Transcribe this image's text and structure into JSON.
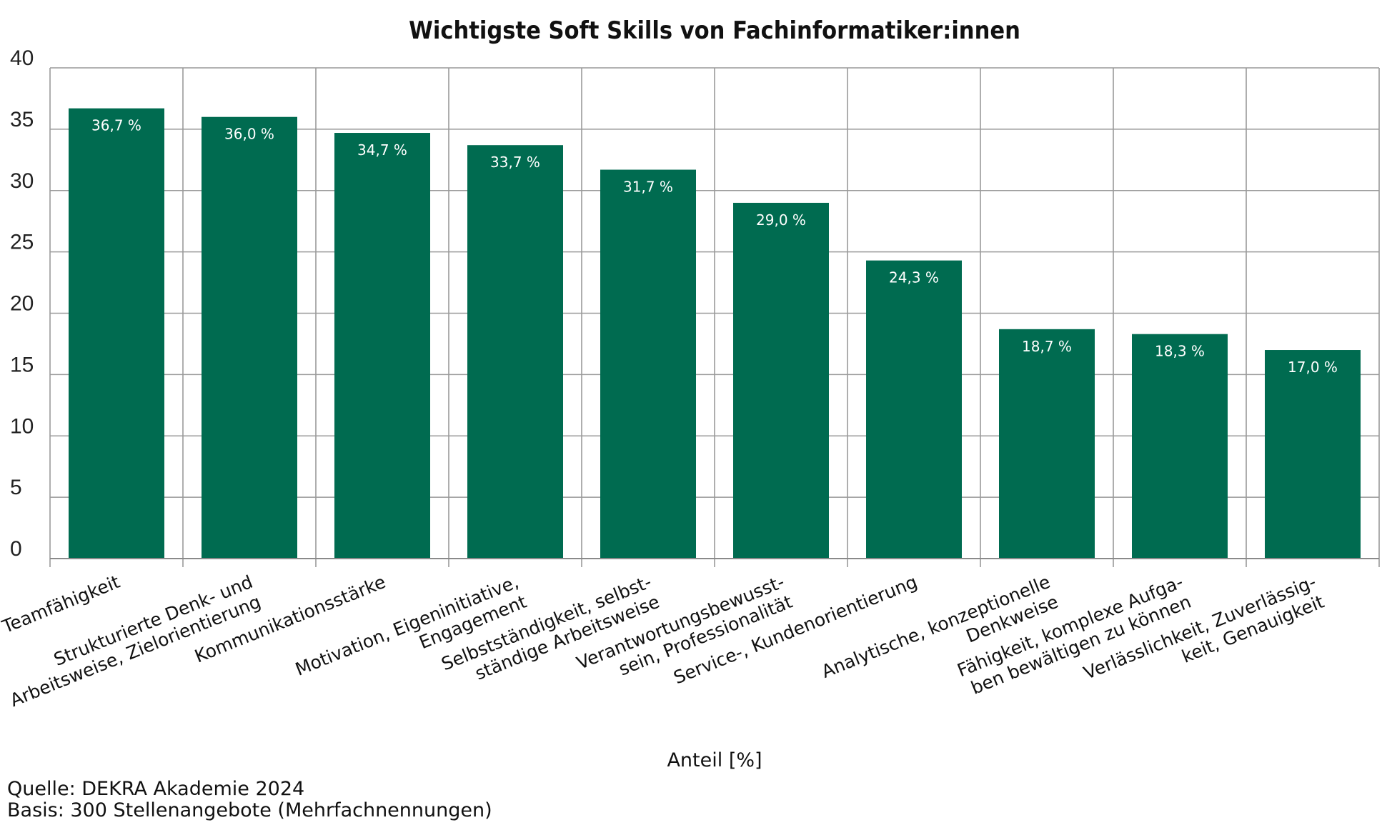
{
  "chart_data": {
    "type": "bar",
    "title": "Wichtigste Soft Skills von Fachinformatiker:innen",
    "xlabel": "Anteil [%]",
    "ylabel": "",
    "ylim": [
      0,
      40
    ],
    "yticks": [
      0,
      5,
      10,
      15,
      20,
      25,
      30,
      35,
      40
    ],
    "grid": true,
    "bar_color": "#006b50",
    "categories": [
      [
        "Teamfähigkeit"
      ],
      [
        "Strukturierte Denk- und",
        "Arbeitsweise, Zielorientierung"
      ],
      [
        "Kommunikationsstärke"
      ],
      [
        "Motivation, Eigeninitiative,",
        "Engagement"
      ],
      [
        "Selbstständigkeit, selbst-",
        "ständige Arbeitsweise"
      ],
      [
        "Verantwortungsbewusst-",
        "sein, Professionalität"
      ],
      [
        "Service-, Kundenorientierung"
      ],
      [
        "Analytische, konzeptionelle",
        "Denkweise"
      ],
      [
        "Fähigkeit, komplexe Aufga-",
        "ben bewältigen zu können"
      ],
      [
        "Verlässlichkeit, Zuverlässig-",
        "keit, Genauigkeit"
      ]
    ],
    "values": [
      36.7,
      36.0,
      34.7,
      33.7,
      31.7,
      29.0,
      24.3,
      18.7,
      18.3,
      17.0
    ],
    "value_labels": [
      "36,7 %",
      "36,0 %",
      "34,7 %",
      "33,7 %",
      "31,7 %",
      "29,0 %",
      "24,3 %",
      "18,7 %",
      "18,3 %",
      "17,0 %"
    ]
  },
  "footer": {
    "source": "Quelle: DEKRA Akademie 2024",
    "basis": "Basis: 300 Stellenangebote (Mehrfachnennungen)"
  }
}
